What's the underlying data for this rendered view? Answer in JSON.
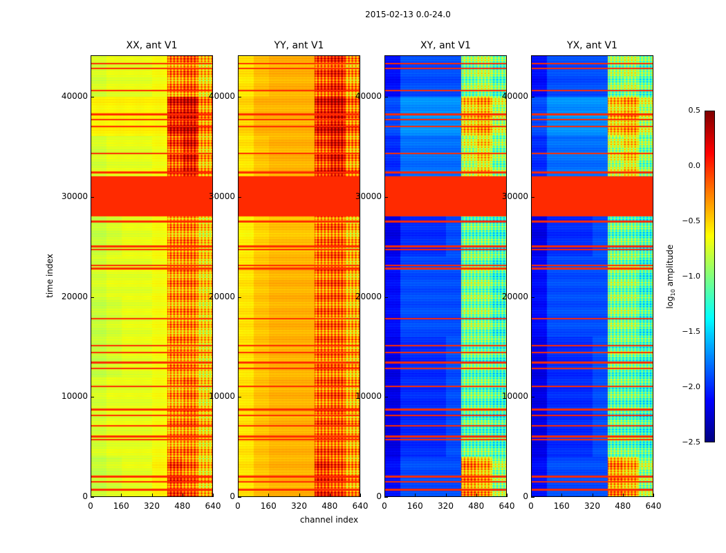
{
  "figure": {
    "suptitle": "2015-02-13 0.0-24.0",
    "xlabel": "channel index",
    "ylabel": "time index"
  },
  "chart_data": {
    "type": "heatmap",
    "title": "2015-02-13 0.0-24.0",
    "xlabel": "channel index",
    "ylabel": "time index",
    "xlim": [
      0,
      640
    ],
    "ylim": [
      0,
      44150
    ],
    "xticks": [
      "0",
      "160",
      "320",
      "480",
      "640"
    ],
    "yticks": [
      "0",
      "10000",
      "20000",
      "30000",
      "40000"
    ],
    "xtick_values": [
      0,
      160,
      320,
      480,
      640
    ],
    "ytick_values": [
      0,
      10000,
      20000,
      30000,
      40000
    ],
    "grid_note_columns": [
      0,
      80,
      160,
      240,
      320,
      400,
      480,
      560
    ],
    "grid_note_rows": [
      0,
      4000,
      8000,
      12000,
      16000,
      20000,
      24000,
      28000,
      32000,
      36000,
      40000
    ],
    "flag_line_times": [
      43300,
      42800,
      40600,
      38200,
      37700,
      37000,
      34300,
      32400,
      27500,
      25000,
      24700,
      23100,
      22800,
      17800,
      15100,
      14400,
      13400,
      12800,
      11000,
      8700,
      8100,
      7100,
      6000,
      5700,
      2000,
      1500,
      700
    ],
    "flag_line_value": 0.0,
    "panels": [
      {
        "title": "XX, ant V1",
        "grid": [
          [
            -0.8,
            -0.75,
            -0.7,
            -0.7,
            -0.6,
            -0.1,
            -0.2,
            -0.5
          ],
          [
            -0.75,
            -0.7,
            -0.7,
            -0.7,
            -0.65,
            -0.3,
            -0.25,
            -0.5
          ],
          [
            -0.75,
            -0.7,
            -0.7,
            -0.7,
            -0.65,
            -0.35,
            -0.25,
            -0.55
          ],
          [
            -0.8,
            -0.75,
            -0.7,
            -0.7,
            -0.65,
            -0.3,
            -0.3,
            -0.55
          ],
          [
            -0.8,
            -0.75,
            -0.7,
            -0.7,
            -0.65,
            -0.35,
            -0.3,
            -0.55
          ],
          [
            -0.75,
            -0.7,
            -0.7,
            -0.7,
            -0.65,
            -0.3,
            -0.25,
            -0.5
          ],
          [
            -0.8,
            -0.75,
            -0.7,
            -0.7,
            -0.65,
            -0.35,
            -0.3,
            -0.55
          ],
          [
            0,
            0,
            0,
            0,
            0,
            0,
            0,
            0
          ],
          [
            -0.75,
            -0.7,
            -0.7,
            -0.7,
            -0.65,
            -0.1,
            0.1,
            -0.4
          ],
          [
            -0.6,
            -0.6,
            -0.6,
            -0.6,
            -0.6,
            0.1,
            0.2,
            -0.3
          ],
          [
            -0.75,
            -0.7,
            -0.7,
            -0.7,
            -0.65,
            -0.3,
            -0.2,
            -0.5
          ]
        ]
      },
      {
        "title": "YY, ant V1",
        "grid": [
          [
            -0.55,
            -0.45,
            -0.4,
            -0.4,
            -0.4,
            0.0,
            -0.1,
            -0.35
          ],
          [
            -0.55,
            -0.45,
            -0.4,
            -0.4,
            -0.4,
            -0.15,
            -0.15,
            -0.35
          ],
          [
            -0.55,
            -0.45,
            -0.4,
            -0.4,
            -0.4,
            -0.2,
            -0.15,
            -0.4
          ],
          [
            -0.55,
            -0.45,
            -0.4,
            -0.4,
            -0.4,
            -0.2,
            -0.2,
            -0.4
          ],
          [
            -0.55,
            -0.45,
            -0.4,
            -0.4,
            -0.4,
            -0.2,
            -0.2,
            -0.4
          ],
          [
            -0.55,
            -0.45,
            -0.4,
            -0.4,
            -0.4,
            -0.2,
            -0.15,
            -0.4
          ],
          [
            -0.6,
            -0.5,
            -0.45,
            -0.45,
            -0.45,
            -0.25,
            -0.2,
            -0.45
          ],
          [
            0,
            0,
            0,
            0,
            0,
            0,
            0,
            0
          ],
          [
            -0.55,
            -0.45,
            -0.4,
            -0.4,
            -0.4,
            -0.05,
            0.1,
            -0.3
          ],
          [
            -0.5,
            -0.4,
            -0.4,
            -0.4,
            -0.4,
            0.1,
            0.2,
            -0.2
          ],
          [
            -0.55,
            -0.45,
            -0.4,
            -0.4,
            -0.4,
            -0.1,
            0.0,
            -0.35
          ]
        ]
      },
      {
        "title": "XY, ant V1",
        "grid": [
          [
            -2.1,
            -1.9,
            -1.9,
            -1.9,
            -1.9,
            -0.3,
            -0.4,
            -0.9
          ],
          [
            -2.2,
            -2.0,
            -2.0,
            -2.0,
            -1.9,
            -1.1,
            -1.1,
            -1.2
          ],
          [
            -2.2,
            -2.0,
            -2.0,
            -2.0,
            -1.9,
            -1.1,
            -1.1,
            -1.2
          ],
          [
            -2.2,
            -2.0,
            -2.0,
            -2.0,
            -1.9,
            -1.1,
            -1.1,
            -1.2
          ],
          [
            -2.1,
            -1.9,
            -1.9,
            -1.9,
            -1.9,
            -1.0,
            -1.0,
            -1.2
          ],
          [
            -2.1,
            -1.9,
            -1.9,
            -1.9,
            -1.9,
            -1.0,
            -1.0,
            -1.2
          ],
          [
            -2.2,
            -2.0,
            -2.0,
            -2.0,
            -1.9,
            -1.1,
            -1.1,
            -1.2
          ],
          [
            0,
            0,
            0,
            0,
            0,
            0,
            0,
            0
          ],
          [
            -2.0,
            -1.8,
            -1.8,
            -1.8,
            -1.8,
            -0.8,
            -0.6,
            -1.0
          ],
          [
            -1.9,
            -1.7,
            -1.7,
            -1.7,
            -1.7,
            -0.5,
            -0.4,
            -0.8
          ],
          [
            -2.1,
            -1.9,
            -1.9,
            -1.9,
            -1.9,
            -1.0,
            -0.9,
            -1.1
          ]
        ]
      },
      {
        "title": "YX, ant V1",
        "grid": [
          [
            -2.1,
            -1.9,
            -1.9,
            -1.9,
            -1.9,
            -0.3,
            -0.4,
            -0.9
          ],
          [
            -2.2,
            -2.0,
            -2.0,
            -2.0,
            -1.9,
            -1.1,
            -1.1,
            -1.2
          ],
          [
            -2.2,
            -2.0,
            -2.0,
            -2.0,
            -1.9,
            -1.1,
            -1.1,
            -1.2
          ],
          [
            -2.2,
            -2.0,
            -2.0,
            -2.0,
            -1.9,
            -1.1,
            -1.1,
            -1.2
          ],
          [
            -2.1,
            -1.9,
            -1.9,
            -1.9,
            -1.9,
            -1.0,
            -1.0,
            -1.2
          ],
          [
            -2.1,
            -1.9,
            -1.9,
            -1.9,
            -1.9,
            -1.0,
            -1.0,
            -1.2
          ],
          [
            -2.2,
            -2.0,
            -2.0,
            -2.0,
            -1.9,
            -1.1,
            -1.1,
            -1.2
          ],
          [
            0,
            0,
            0,
            0,
            0,
            0,
            0,
            0
          ],
          [
            -2.0,
            -1.8,
            -1.8,
            -1.8,
            -1.8,
            -0.8,
            -0.6,
            -1.0
          ],
          [
            -1.9,
            -1.7,
            -1.7,
            -1.7,
            -1.7,
            -0.5,
            -0.4,
            -0.8
          ],
          [
            -2.1,
            -1.9,
            -1.9,
            -1.9,
            -1.9,
            -1.0,
            -0.9,
            -1.1
          ]
        ]
      }
    ],
    "colorbar": {
      "label": "log10 amplitude",
      "label_main": "log",
      "label_sub": "10",
      "label_rest": " amplitude",
      "colormap": "jet",
      "range": [
        -2.5,
        0.5
      ],
      "ticks": [
        "0.5",
        "0.0",
        "−0.5",
        "−1.0",
        "−1.5",
        "−2.0",
        "−2.5"
      ],
      "tick_values": [
        0.5,
        0.0,
        -0.5,
        -1.0,
        -1.5,
        -2.0,
        -2.5
      ]
    }
  }
}
